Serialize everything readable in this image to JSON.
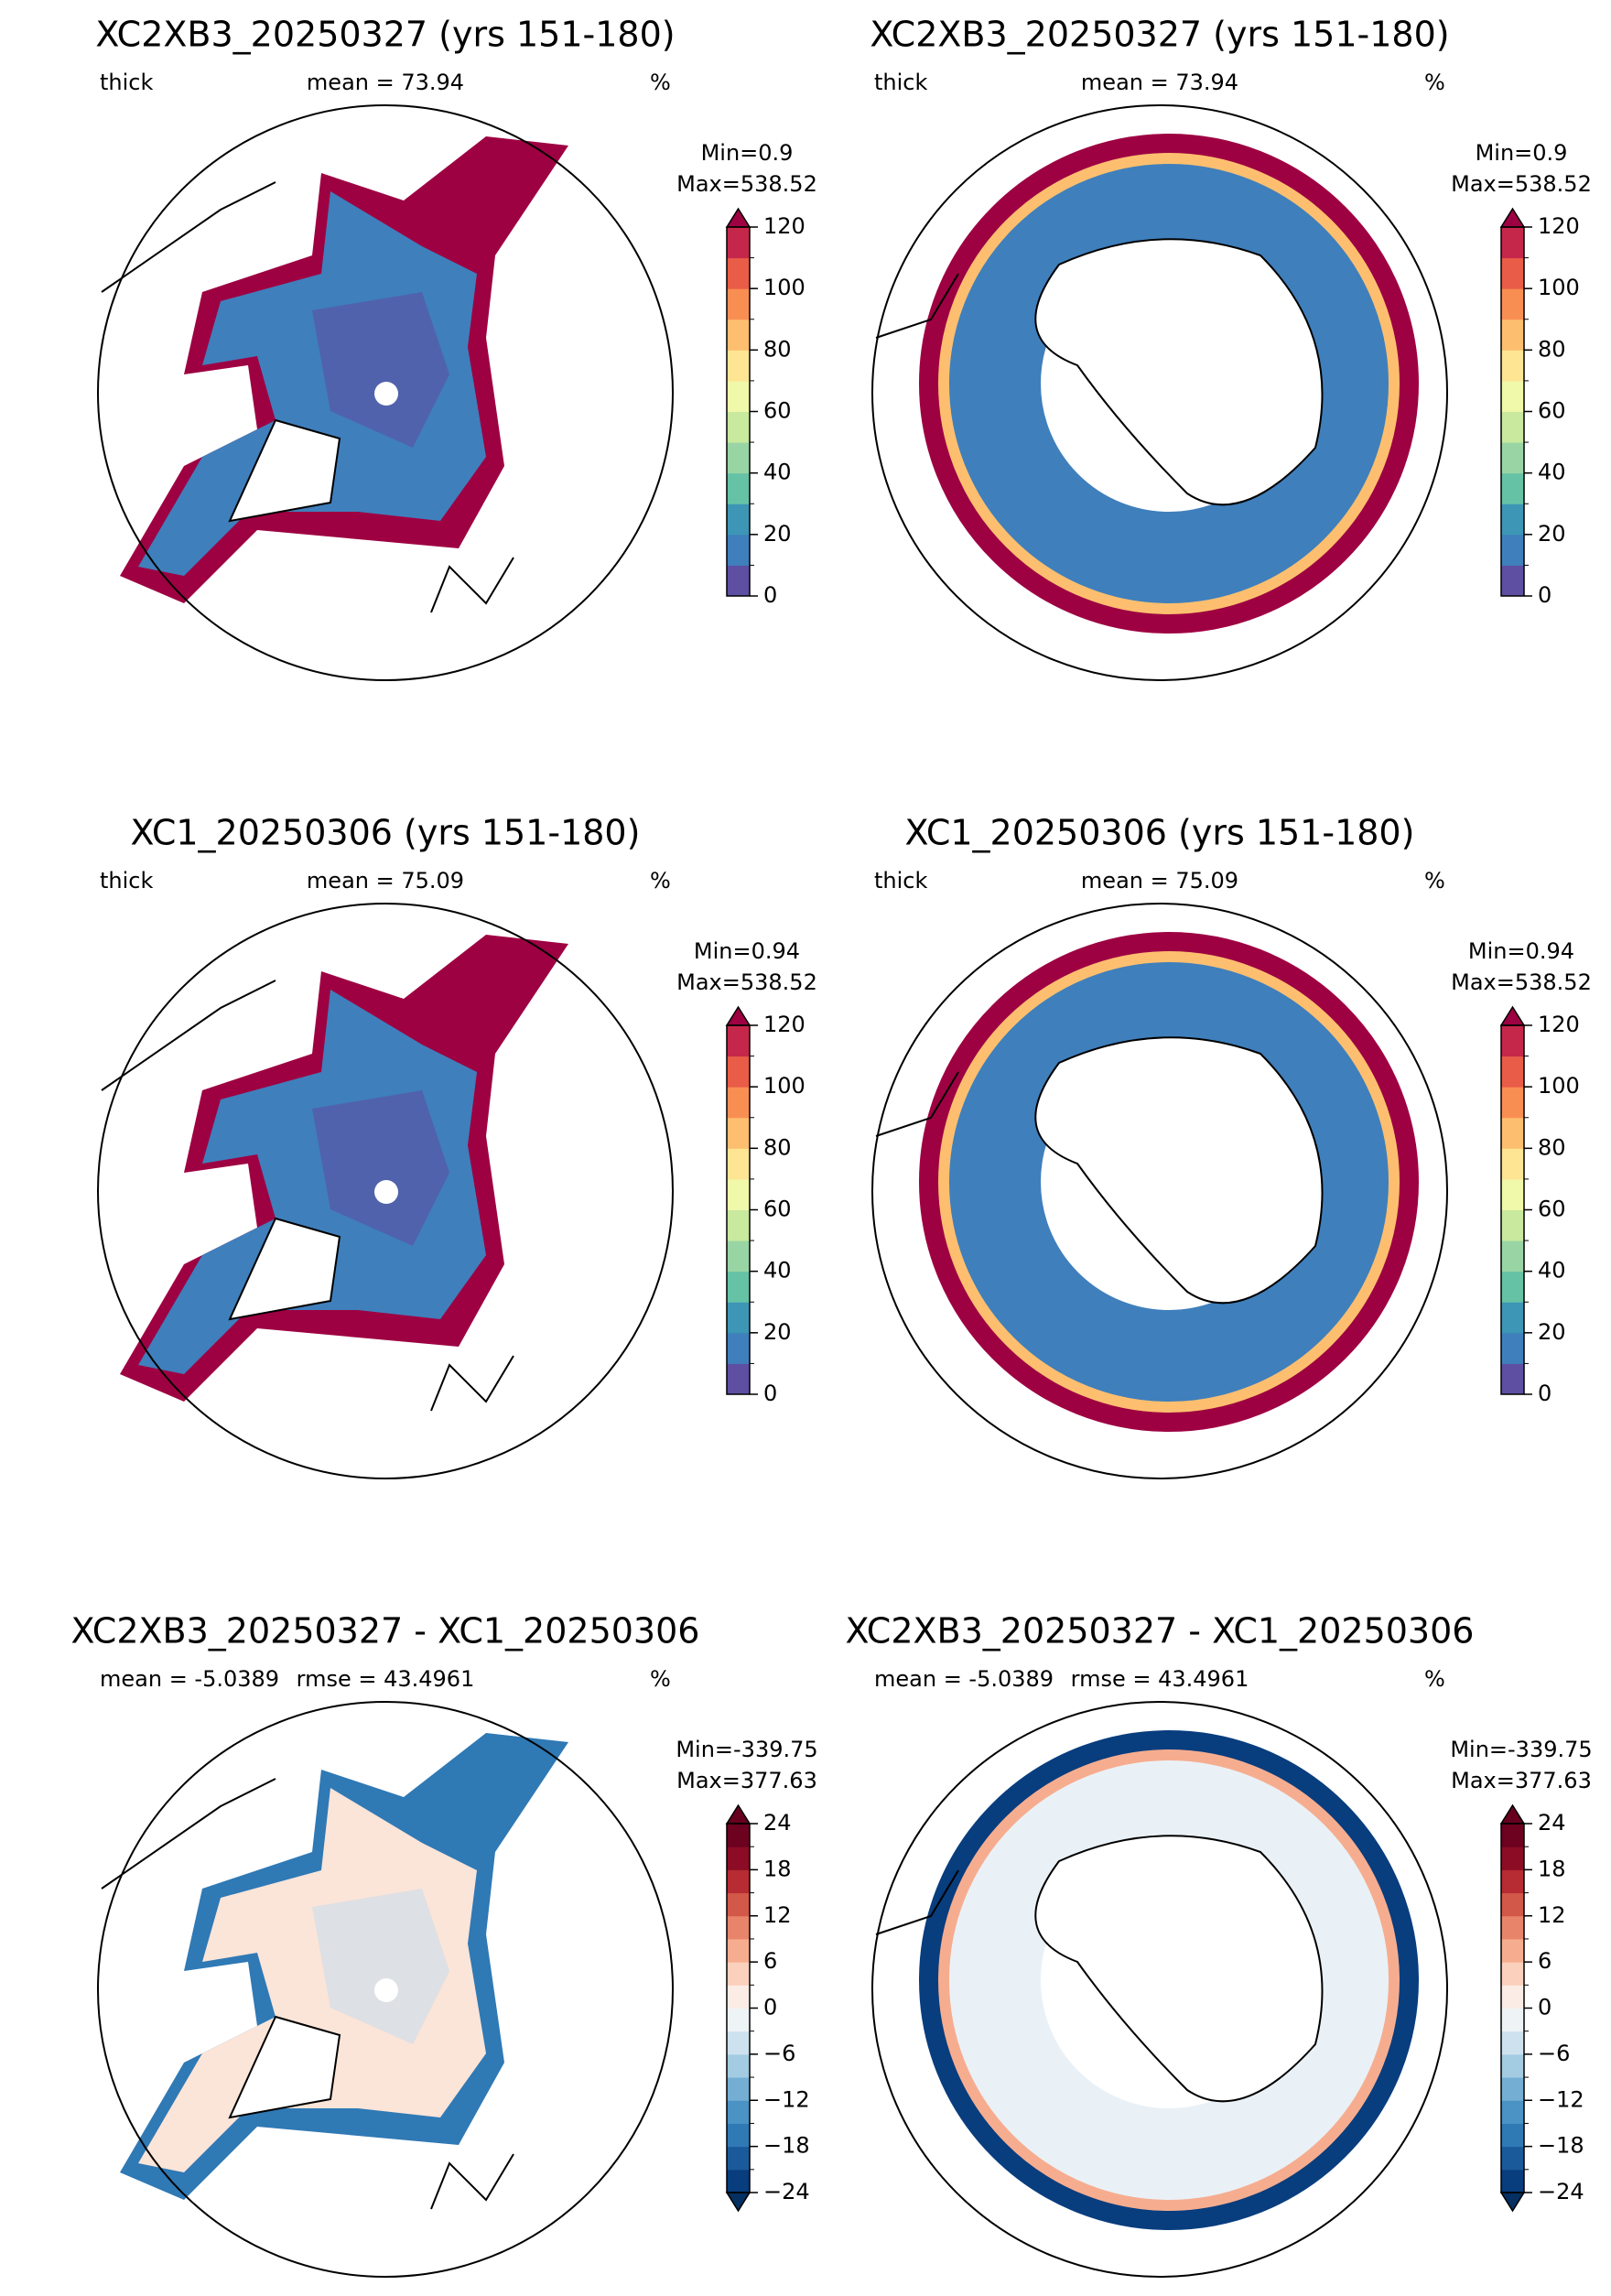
{
  "rows": [
    {
      "colorbar": {
        "ticks": [
          0,
          20,
          40,
          60,
          80,
          100,
          120
        ],
        "bounds": [
          0,
          120
        ],
        "extend": "max",
        "colors": [
          "#5e4fa2",
          "#3f7fbc",
          "#3d96b6",
          "#66c2a5",
          "#99d5a4",
          "#c8e99e",
          "#f0f8a9",
          "#fee593",
          "#fdbf6f",
          "#f98e52",
          "#e95c47",
          "#c5274b"
        ],
        "over": "#9e0142"
      },
      "panels": [
        {
          "title": "XC2XB3_20250327 (yrs 151-180)",
          "left_label": "thick",
          "center_label": "mean = 73.94",
          "unit": "%",
          "min_label": "Min=0.9",
          "max_label": "Max=538.52",
          "hemisphere": "north"
        },
        {
          "title": "XC2XB3_20250327 (yrs 151-180)",
          "left_label": "thick",
          "center_label": "mean = 73.94",
          "unit": "%",
          "min_label": "Min=0.9",
          "max_label": "Max=538.52",
          "hemisphere": "south"
        }
      ]
    },
    {
      "colorbar": {
        "ticks": [
          0,
          20,
          40,
          60,
          80,
          100,
          120
        ],
        "bounds": [
          0,
          120
        ],
        "extend": "max",
        "colors": [
          "#5e4fa2",
          "#3f7fbc",
          "#3d96b6",
          "#66c2a5",
          "#99d5a4",
          "#c8e99e",
          "#f0f8a9",
          "#fee593",
          "#fdbf6f",
          "#f98e52",
          "#e95c47",
          "#c5274b"
        ],
        "over": "#9e0142"
      },
      "panels": [
        {
          "title": "XC1_20250306 (yrs 151-180)",
          "left_label": "thick",
          "center_label": "mean = 75.09",
          "unit": "%",
          "min_label": "Min=0.94",
          "max_label": "Max=538.52",
          "hemisphere": "north"
        },
        {
          "title": "XC1_20250306 (yrs 151-180)",
          "left_label": "thick",
          "center_label": "mean = 75.09",
          "unit": "%",
          "min_label": "Min=0.94",
          "max_label": "Max=538.52",
          "hemisphere": "south"
        }
      ]
    },
    {
      "colorbar": {
        "ticks": [
          {
            "value": -24,
            "label": "−24"
          },
          {
            "value": -18,
            "label": "−18"
          },
          {
            "value": -12,
            "label": "−12"
          },
          {
            "value": -6,
            "label": "−6"
          },
          0,
          6,
          12,
          18,
          24
        ],
        "bounds": [
          -24,
          24
        ],
        "extend": "both",
        "colors": [
          "#083d7e",
          "#1b5a9a",
          "#2f79b5",
          "#4a93c4",
          "#74aed3",
          "#a3cbe2",
          "#cde1ee",
          "#eef3f6",
          "#fbece5",
          "#fbd1bd",
          "#f6ad8f",
          "#e8846a",
          "#d25849",
          "#b72b33",
          "#8c0c25",
          "#6d0120"
        ],
        "under": "#053061",
        "over": "#67001f"
      },
      "panels": [
        {
          "title": "XC2XB3_20250327 - XC1_20250306",
          "left_label": "mean = -5.0389",
          "center_label": "rmse = 43.4961",
          "unit": "%",
          "min_label": "Min=-339.75",
          "max_label": "Max=377.63",
          "hemisphere": "north"
        },
        {
          "title": "XC2XB3_20250327 - XC1_20250306",
          "left_label": "mean = -5.0389",
          "center_label": "rmse = 43.4961",
          "unit": "%",
          "min_label": "Min=-339.75",
          "max_label": "Max=377.63",
          "hemisphere": "south"
        }
      ]
    }
  ]
}
